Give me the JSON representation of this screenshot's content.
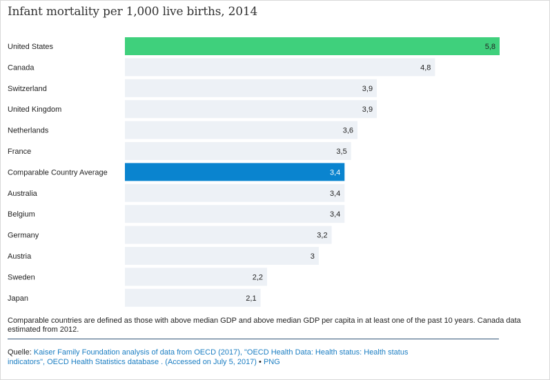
{
  "chart_data": {
    "type": "bar",
    "orientation": "horizontal",
    "title": "Infant mortality per 1,000 live births, 2014",
    "categories": [
      "United States",
      "Canada",
      "Switzerland",
      "United Kingdom",
      "Netherlands",
      "France",
      "Comparable Country Average",
      "Australia",
      "Belgium",
      "Germany",
      "Austria",
      "Sweden",
      "Japan"
    ],
    "values": [
      5.8,
      4.8,
      3.9,
      3.9,
      3.6,
      3.5,
      3.4,
      3.4,
      3.4,
      3.2,
      3,
      2.2,
      2.1
    ],
    "value_labels": [
      "5,8",
      "4,8",
      "3,9",
      "3,9",
      "3,6",
      "3,5",
      "3,4",
      "3,4",
      "3,4",
      "3,2",
      "3",
      "2,2",
      "2,1"
    ],
    "bar_colors": [
      "#3fd07c",
      "#edf1f6",
      "#edf1f6",
      "#edf1f6",
      "#edf1f6",
      "#edf1f6",
      "#0a84cf",
      "#edf1f6",
      "#edf1f6",
      "#edf1f6",
      "#edf1f6",
      "#edf1f6",
      "#edf1f6"
    ],
    "label_colors": [
      "#222222",
      "#222222",
      "#222222",
      "#222222",
      "#222222",
      "#222222",
      "#ffffff",
      "#222222",
      "#222222",
      "#222222",
      "#222222",
      "#222222",
      "#222222"
    ],
    "xlim": [
      0,
      5.8
    ],
    "grid": false,
    "legend": "none"
  },
  "notes": {
    "footnote": "Comparable countries are defined as those with above median GDP and above median GDP per capita in at least one of the past 10 years. Canada data estimated from 2012.",
    "source_prefix": "Quelle: ",
    "source_link": "Kaiser Family Foundation analysis of data from OECD (2017), \"OECD Health Data: Health status: Health status indicators\", OECD Health Statistics database . (Accessed on July 5, 2017)",
    "source_separator": " • ",
    "png_link": "PNG"
  }
}
